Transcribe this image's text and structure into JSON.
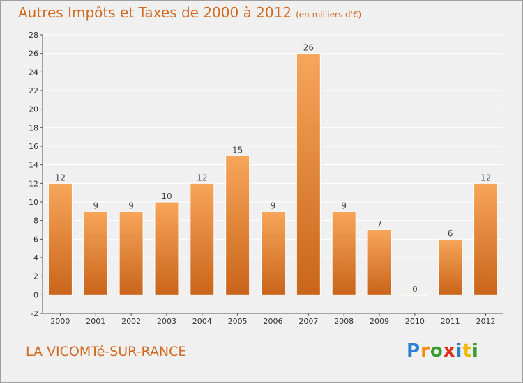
{
  "header": {
    "title": "Autres Impôts et Taxes de 2000 à 2012",
    "subtitle": "(en milliers d'€)"
  },
  "footer": {
    "town": "LA VICOMTé-SUR-RANCE",
    "logo": {
      "letters": [
        "P",
        "r",
        "o",
        "x",
        "i",
        "t",
        "i"
      ],
      "colors": [
        "#2f7fd1",
        "#f28c00",
        "#3a9d2e",
        "#e0301e",
        "#2f7fd1",
        "#f2b800",
        "#3a9d2e"
      ]
    }
  },
  "colors": {
    "bar_top": "#f7a65a",
    "bar_bottom": "#c9651a",
    "title": "#d2691e",
    "background": "#f0f0f0",
    "grid": "#ffffff"
  },
  "chart_data": {
    "type": "bar",
    "categories": [
      "2000",
      "2001",
      "2002",
      "2003",
      "2004",
      "2005",
      "2006",
      "2007",
      "2008",
      "2009",
      "2010",
      "2011",
      "2012"
    ],
    "values": [
      12,
      9,
      9,
      10,
      12,
      15,
      9,
      26,
      9,
      7,
      0,
      6,
      12
    ],
    "title": "Autres Impôts et Taxes de 2000 à 2012",
    "xlabel": "",
    "ylabel": "",
    "ylim": [
      -2,
      28
    ],
    "yticks": [
      -2,
      0,
      2,
      4,
      6,
      8,
      10,
      12,
      14,
      16,
      18,
      20,
      22,
      24,
      26,
      28
    ],
    "grid": true,
    "data_labels": true
  }
}
